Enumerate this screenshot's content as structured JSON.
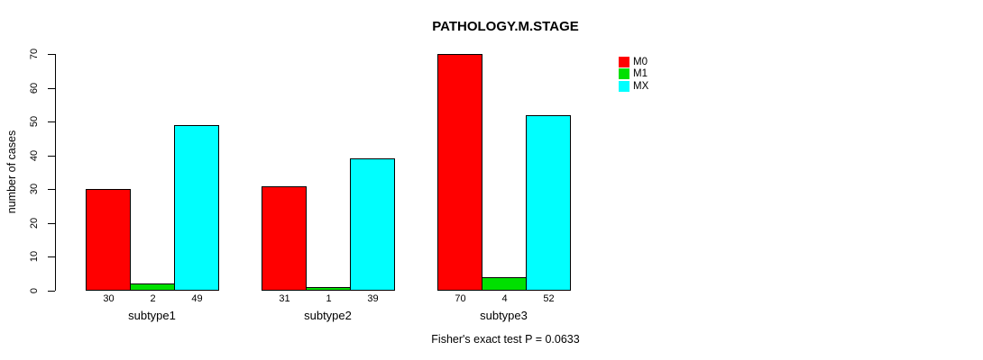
{
  "title": "PATHOLOGY.M.STAGE",
  "caption": "Fisher's exact test P = 0.0633",
  "chart_data": {
    "type": "bar",
    "grouped": true,
    "title": "PATHOLOGY.M.STAGE",
    "subtitle": "Fisher's exact test P = 0.0633",
    "xlabel": "",
    "ylabel": "number of cases",
    "categories": [
      "subtype1",
      "subtype2",
      "subtype3"
    ],
    "series": [
      {
        "name": "M0",
        "color": "#FF0000",
        "values": [
          30,
          31,
          70
        ]
      },
      {
        "name": "M1",
        "color": "#00E000",
        "values": [
          2,
          1,
          4
        ]
      },
      {
        "name": "MX",
        "color": "#00FFFF",
        "values": [
          49,
          39,
          52
        ]
      }
    ],
    "value_labels": [
      [
        "30",
        "2",
        "49"
      ],
      [
        "31",
        "1",
        "39"
      ],
      [
        "70",
        "4",
        "52"
      ]
    ],
    "ylim": [
      0,
      70
    ],
    "yticks": [
      0,
      10,
      20,
      30,
      40,
      50,
      60,
      70
    ],
    "grid": false,
    "legend_position": "right",
    "axis_color": "#000000",
    "bar_border_color": "#000000"
  }
}
